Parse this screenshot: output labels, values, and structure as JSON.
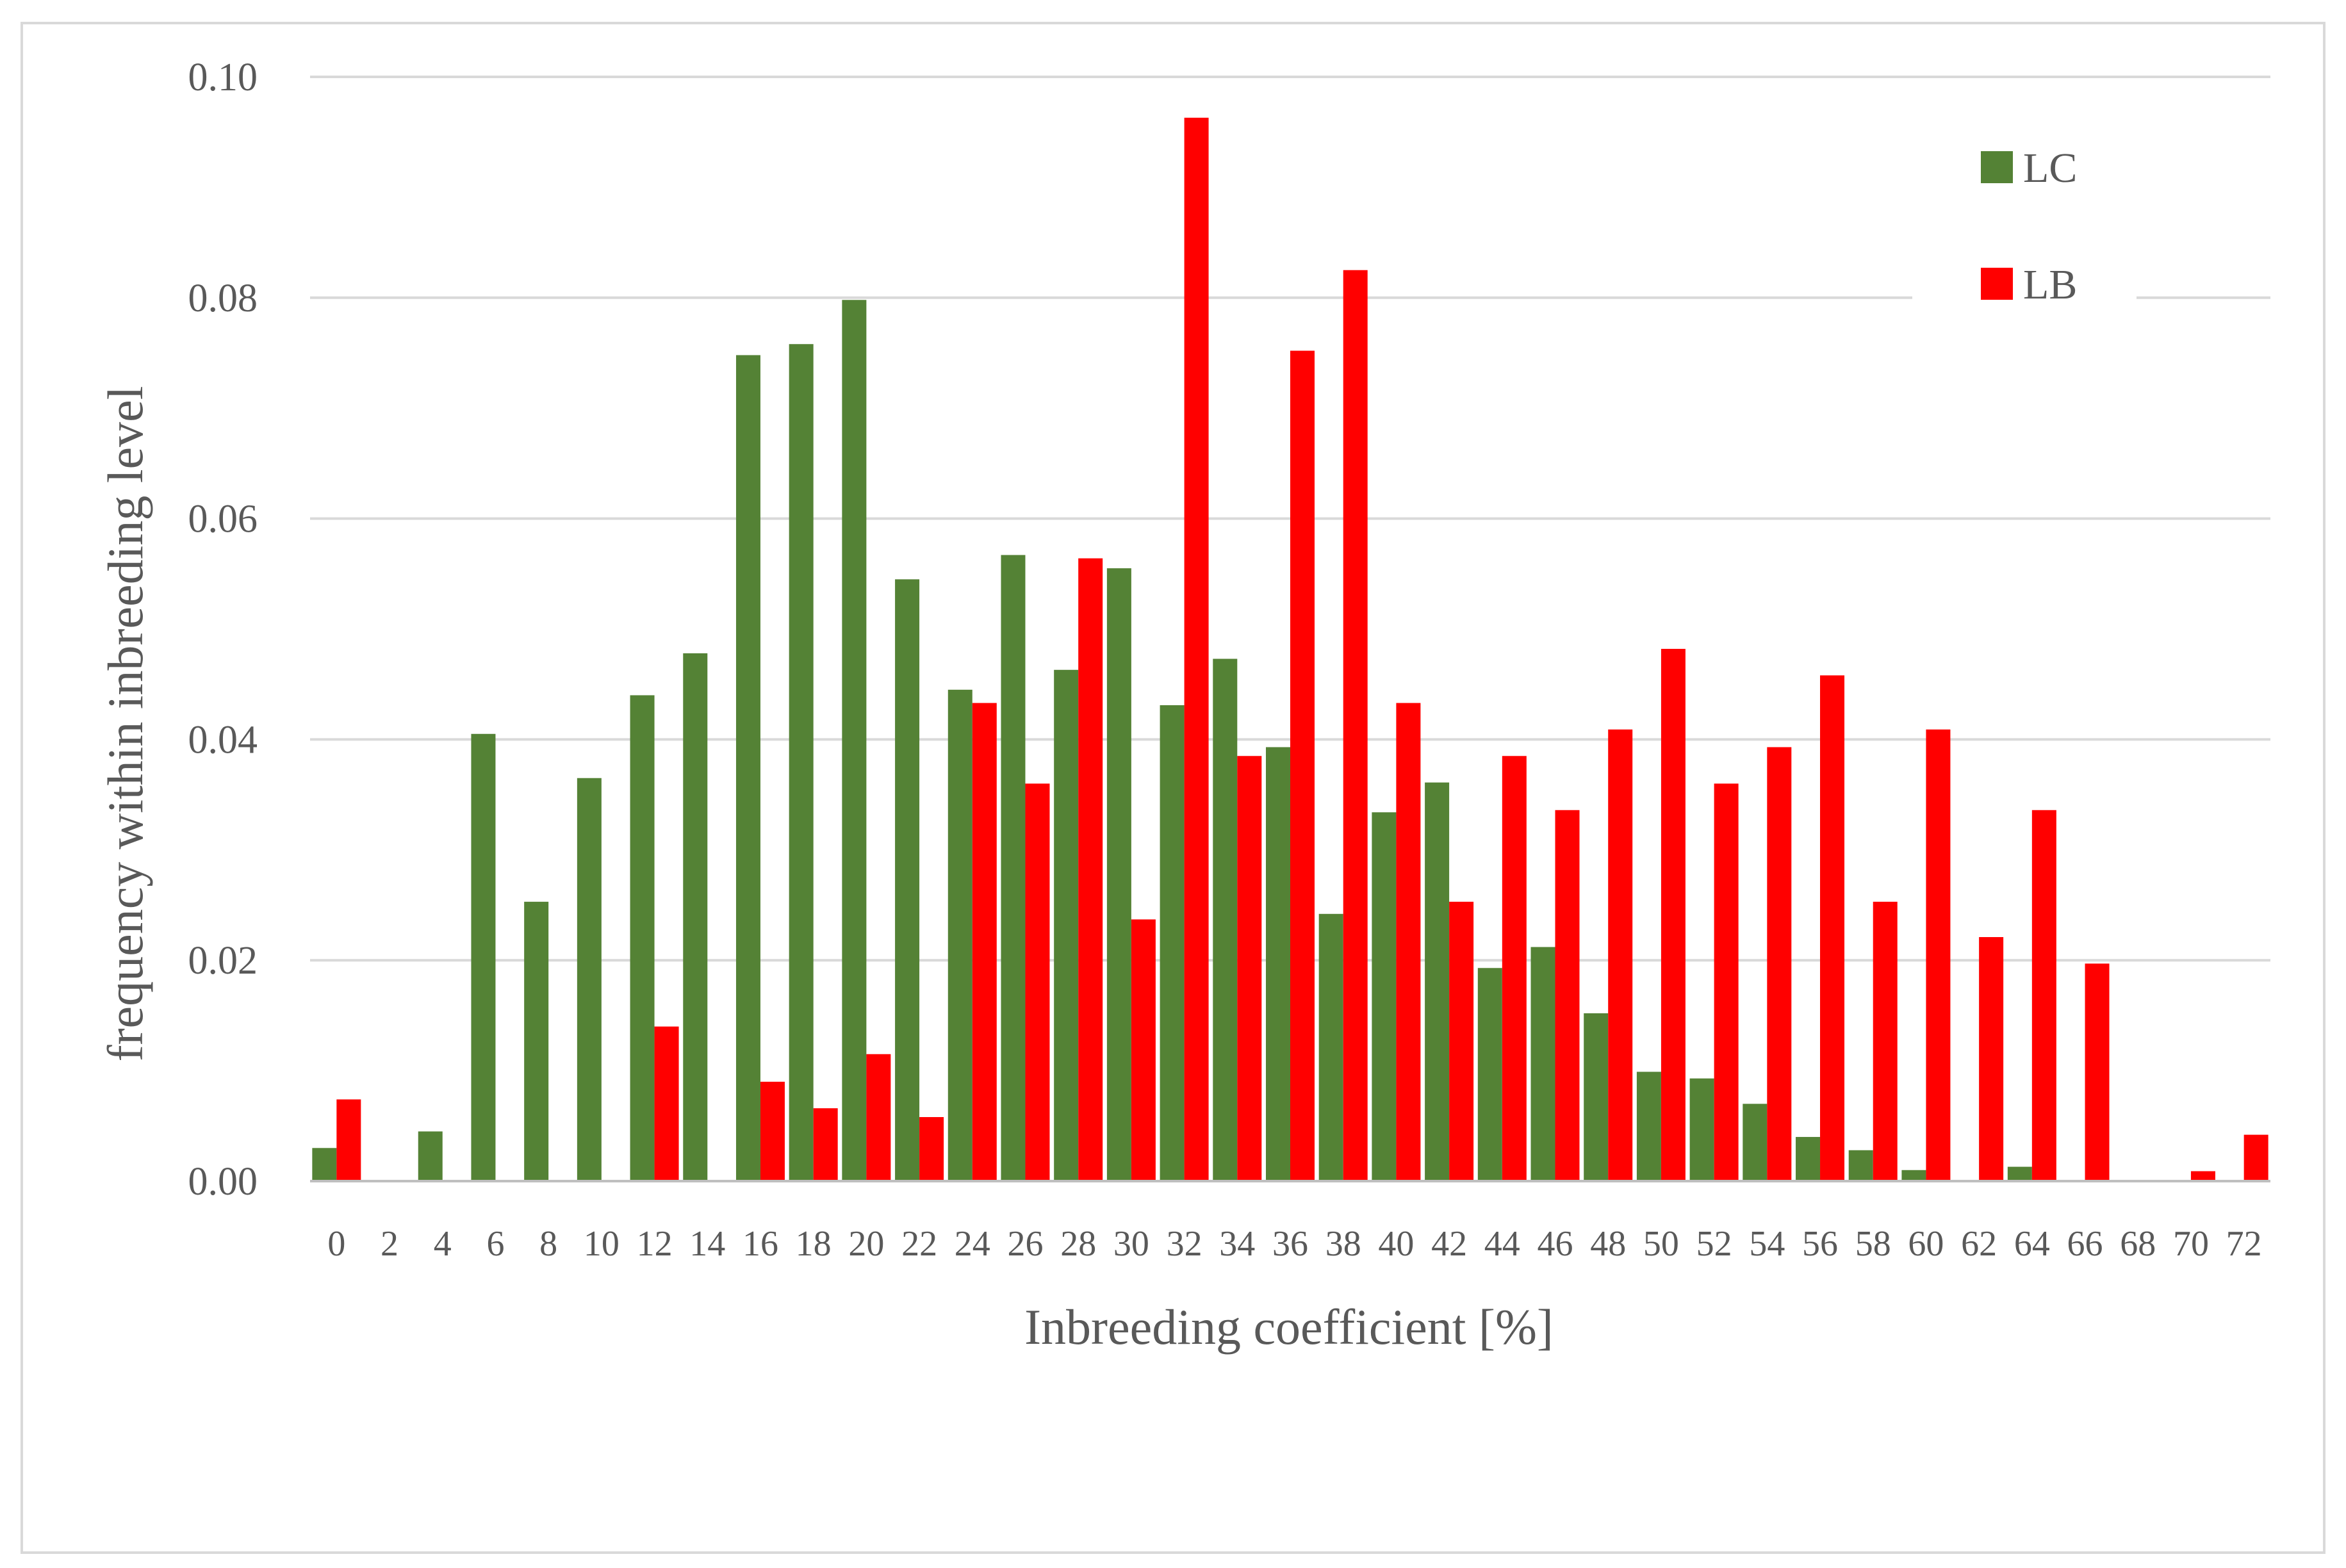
{
  "chart_data": {
    "type": "bar",
    "xlabel": "Inbreeding coefficient [%]",
    "ylabel": "frequency within inbreeding level",
    "ylim": [
      0,
      0.1
    ],
    "yticks": [
      "0.00",
      "0.02",
      "0.04",
      "0.06",
      "0.08",
      "0.10"
    ],
    "grid": true,
    "legend_placement": "top-right",
    "categories": [
      "0",
      "2",
      "4",
      "6",
      "8",
      "10",
      "12",
      "14",
      "16",
      "18",
      "20",
      "22",
      "24",
      "26",
      "28",
      "30",
      "32",
      "34",
      "36",
      "38",
      "40",
      "42",
      "44",
      "46",
      "48",
      "50",
      "52",
      "54",
      "56",
      "58",
      "60",
      "62",
      "64",
      "66",
      "68",
      "70",
      "72"
    ],
    "series": [
      {
        "name": "LC",
        "color": "#548235",
        "values": [
          0.003,
          0,
          0.0045,
          0.0405,
          0.0253,
          0.0365,
          0.044,
          0.0478,
          0.0748,
          0.0758,
          0.0798,
          0.0545,
          0.0445,
          0.0567,
          0.0463,
          0.0555,
          0.0431,
          0.0473,
          0.0393,
          0.0242,
          0.0334,
          0.0361,
          0.0193,
          0.0212,
          0.0152,
          0.0099,
          0.0093,
          0.007,
          0.004,
          0.0028,
          0.001,
          0,
          0.0013,
          0,
          0,
          0,
          0
        ]
      },
      {
        "name": "LB",
        "color": "#ff0000",
        "values": [
          0.0074,
          0,
          0,
          0,
          0,
          0,
          0.014,
          0,
          0.009,
          0.0066,
          0.0115,
          0.0058,
          0.0433,
          0.036,
          0.0564,
          0.0237,
          0.0963,
          0.0385,
          0.0752,
          0.0825,
          0.0433,
          0.0253,
          0.0385,
          0.0336,
          0.0409,
          0.0482,
          0.036,
          0.0393,
          0.0458,
          0.0253,
          0.0409,
          0.0221,
          0.0336,
          0.0197,
          0,
          0.0009,
          0.0042
        ]
      }
    ]
  }
}
